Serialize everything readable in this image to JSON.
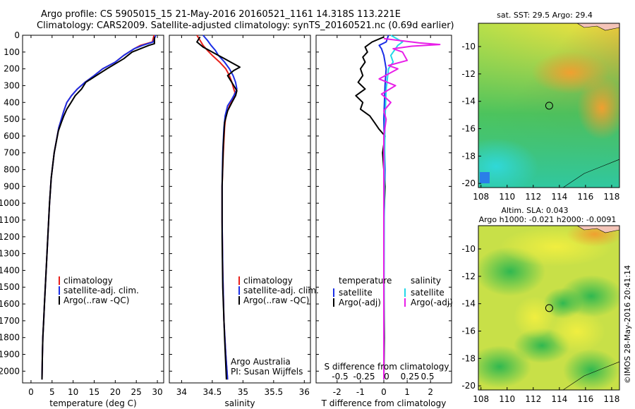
{
  "header": {
    "line1": "Argo profile: CS 5905015_15 21-May-2016 20160521_1161 14.318S 113.221E",
    "line2": "Climatology: CARS2009. Satellite-adjusted climatology: synTS_20160521.nc (0.69d earlier)"
  },
  "side_label": "©IMOS 28-May-2016 20:41:14",
  "colors": {
    "red": "#e8201a",
    "blue": "#1a2ee6",
    "black": "#000000",
    "cyan": "#22d8e8",
    "magenta": "#e81ee8"
  },
  "depth_axis": {
    "ticks": [
      0,
      100,
      200,
      300,
      400,
      500,
      600,
      700,
      800,
      900,
      1000,
      1100,
      1200,
      1300,
      1400,
      1500,
      1600,
      1700,
      1800,
      1900,
      2000
    ],
    "ylim": [
      0,
      2070
    ]
  },
  "chart_data": [
    {
      "type": "line",
      "xlabel": "temperature (deg C)",
      "xticks": [
        0,
        5,
        10,
        15,
        20,
        25,
        30
      ],
      "xlim": [
        -2,
        31.5
      ],
      "legend": [
        "climatology",
        "satellite-adj. clim.",
        "Argo(..raw -QC)"
      ],
      "series": [
        {
          "name": "climatology",
          "color": "red",
          "x": [
            29.2,
            28.8,
            26,
            24.5,
            22,
            20,
            17,
            15,
            12.8,
            11,
            9.6,
            8.5,
            7.8,
            7.2,
            6.6,
            5.5,
            4.8,
            4.4,
            4.0,
            3.6,
            3.4,
            3.2,
            3.0,
            2.8,
            2.7,
            2.6
          ],
          "y": [
            0,
            40,
            60,
            80,
            120,
            160,
            200,
            240,
            280,
            320,
            360,
            400,
            450,
            500,
            550,
            700,
            850,
            1000,
            1200,
            1400,
            1500,
            1600,
            1700,
            1800,
            1900,
            2050
          ]
        },
        {
          "name": "satellite-adj. clim.",
          "color": "blue",
          "x": [
            29.6,
            29.0,
            26.5,
            24.5,
            22,
            20,
            17,
            15,
            12.8,
            11,
            9.6,
            8.5,
            7.8,
            7.2,
            6.6,
            5.5,
            4.8,
            4.4,
            4.0,
            3.6,
            3.4,
            3.2,
            3.0,
            2.8,
            2.7,
            2.6
          ],
          "y": [
            0,
            40,
            60,
            80,
            120,
            160,
            200,
            240,
            280,
            320,
            360,
            400,
            450,
            500,
            550,
            700,
            850,
            1000,
            1200,
            1400,
            1500,
            1600,
            1700,
            1800,
            1900,
            2050
          ]
        },
        {
          "name": "Argo(..raw -QC)",
          "color": "black",
          "x": [
            29.3,
            29.3,
            28,
            27,
            24,
            22,
            18,
            15.5,
            13,
            12,
            10.5,
            9.5,
            8.5,
            7.8,
            7.2,
            6.5,
            5.5,
            4.8,
            4.4,
            4.0,
            3.6,
            3.4,
            3.2,
            3.0,
            2.8,
            2.7,
            2.6
          ],
          "y": [
            10,
            50,
            60,
            70,
            100,
            140,
            200,
            240,
            280,
            320,
            360,
            400,
            440,
            480,
            520,
            570,
            700,
            850,
            1000,
            1200,
            1400,
            1500,
            1600,
            1700,
            1800,
            1900,
            2050
          ]
        }
      ]
    },
    {
      "type": "line",
      "xlabel": "salinity",
      "xticks": [
        34,
        34.5,
        35,
        35.5,
        36
      ],
      "xlim": [
        33.8,
        36.1
      ],
      "legend": [
        "climatology",
        "satellite-adj. clim.",
        "Argo(..raw -QC)"
      ],
      "annotation": [
        "Argo Australia",
        "PI: Susan Wijffels"
      ],
      "series": [
        {
          "name": "climatology",
          "color": "red",
          "x": [
            34.25,
            34.3,
            34.35,
            34.42,
            34.5,
            34.62,
            34.72,
            34.78,
            34.82,
            34.85,
            34.87,
            34.84,
            34.78,
            34.72,
            34.7,
            34.68,
            34.66,
            34.66,
            34.67,
            34.69,
            34.72,
            34.75
          ],
          "y": [
            0,
            30,
            60,
            90,
            120,
            160,
            200,
            240,
            280,
            320,
            340,
            380,
            420,
            480,
            550,
            700,
            900,
            1100,
            1400,
            1700,
            1900,
            2050
          ]
        },
        {
          "name": "satellite-adj. clim.",
          "color": "blue",
          "x": [
            34.35,
            34.42,
            34.48,
            34.55,
            34.6,
            34.7,
            34.78,
            34.84,
            34.88,
            34.9,
            34.88,
            34.82,
            34.75,
            34.71,
            34.69,
            34.67,
            34.66,
            34.66,
            34.67,
            34.69,
            34.72,
            34.75
          ],
          "y": [
            0,
            30,
            60,
            90,
            120,
            160,
            200,
            240,
            280,
            320,
            340,
            380,
            420,
            480,
            550,
            700,
            900,
            1100,
            1400,
            1700,
            1900,
            2050
          ]
        },
        {
          "name": "Argo(..raw -QC)",
          "color": "black",
          "x": [
            34.3,
            34.25,
            34.35,
            34.45,
            34.55,
            34.7,
            34.8,
            34.95,
            34.85,
            34.75,
            34.8,
            34.85,
            34.9,
            34.88,
            34.82,
            34.75,
            34.7,
            34.68,
            34.66,
            34.66,
            34.67,
            34.7,
            34.73
          ],
          "y": [
            10,
            40,
            70,
            90,
            110,
            140,
            160,
            190,
            210,
            240,
            270,
            300,
            330,
            360,
            400,
            450,
            520,
            650,
            900,
            1200,
            1500,
            1800,
            2050
          ]
        }
      ]
    },
    {
      "type": "line",
      "xlabel": "T difference from climatology",
      "xlabel2": "S difference from climatology",
      "xticks": [
        -2,
        -1,
        0,
        1,
        2
      ],
      "xticks2": [
        "-0.5",
        "-0.25",
        "0",
        "0.25",
        "0.5"
      ],
      "xlim": [
        -2.9,
        2.9
      ],
      "legend_temperature": [
        "temperature",
        "satellite",
        "Argo(-adj)"
      ],
      "legend_salinity": [
        "salinity",
        "satellite",
        "Argo(-adj)"
      ],
      "series": [
        {
          "name": "T satellite",
          "color": "blue",
          "x": [
            0.2,
            0.1,
            -0.2,
            -0.1,
            0,
            0.1,
            0.05,
            0,
            0.05,
            0,
            0
          ],
          "y": [
            0,
            40,
            60,
            80,
            120,
            200,
            300,
            500,
            800,
            1200,
            2050
          ]
        },
        {
          "name": "T Argo(-adj)",
          "color": "black",
          "x": [
            0,
            -0.5,
            -0.8,
            -0.7,
            -0.9,
            -0.8,
            -1.0,
            -0.9,
            -1.1,
            -0.8,
            -1.2,
            -0.9,
            -1.0,
            -0.6,
            -0.4,
            -0.2,
            0.05,
            -0.05,
            0.05,
            0,
            0,
            0.02,
            0
          ],
          "y": [
            10,
            40,
            70,
            100,
            130,
            160,
            200,
            240,
            280,
            320,
            360,
            400,
            440,
            480,
            520,
            560,
            600,
            700,
            900,
            1100,
            1400,
            1800,
            2050
          ]
        },
        {
          "name": "S satellite",
          "color": "cyan",
          "x": [
            0.3,
            0.8,
            0.6,
            0.5,
            0.3,
            0.4,
            0.2,
            0.15,
            0.1,
            0.05,
            0.02,
            0
          ],
          "y": [
            0,
            40,
            60,
            80,
            120,
            160,
            200,
            260,
            320,
            500,
            900,
            2050
          ]
        },
        {
          "name": "S Argo(-adj)",
          "color": "magenta",
          "x": [
            0,
            1.5,
            2.4,
            1.2,
            0.4,
            0.8,
            1.0,
            0.2,
            0.6,
            -0.2,
            0.5,
            -0.1,
            0.3,
            0,
            0.1,
            0,
            0
          ],
          "y": [
            20,
            45,
            55,
            65,
            80,
            100,
            150,
            180,
            200,
            260,
            300,
            350,
            400,
            450,
            500,
            600,
            2050
          ]
        }
      ]
    },
    {
      "type": "heatmap",
      "title": "sat. SST: 29.5  Argo: 29.4",
      "xticks": [
        108,
        110,
        112,
        114,
        116,
        118
      ],
      "yticks": [
        -10,
        -12,
        -14,
        -16,
        -18,
        -20
      ],
      "xlim": [
        107.8,
        118.6
      ],
      "ylim": [
        -20.3,
        -8.3
      ],
      "argo_position": {
        "lon": 113.221,
        "lat": -14.318
      }
    },
    {
      "type": "heatmap",
      "title": "Altim. SLA: 0.043",
      "subtitle": "Argo h1000: -0.021 h2000: -0.0091",
      "xticks": [
        108,
        110,
        112,
        114,
        116,
        118
      ],
      "yticks": [
        -10,
        -12,
        -14,
        -16,
        -18,
        -20
      ],
      "xlim": [
        107.8,
        118.6
      ],
      "ylim": [
        -20.3,
        -8.3
      ],
      "argo_position": {
        "lon": 113.221,
        "lat": -14.318
      }
    }
  ]
}
